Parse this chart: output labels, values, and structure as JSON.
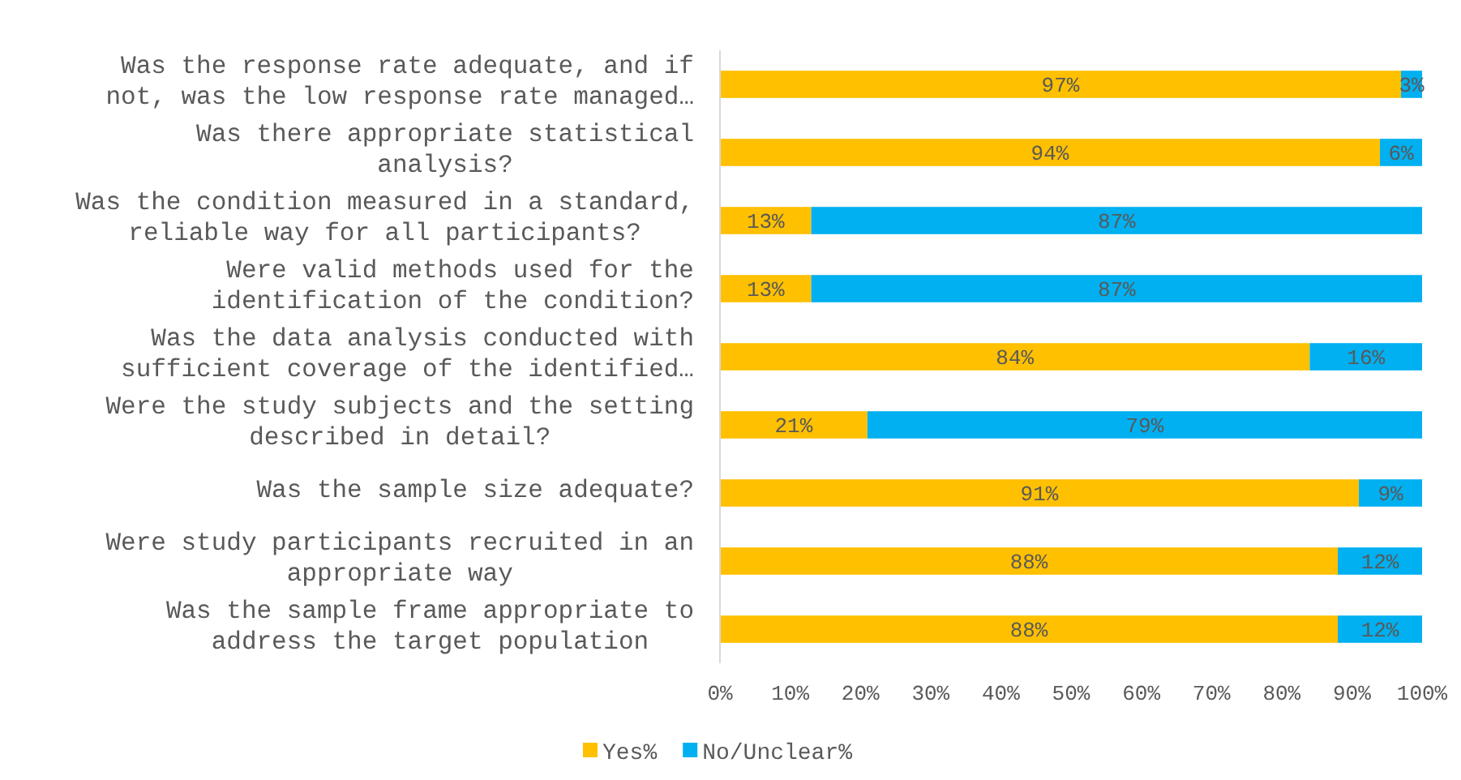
{
  "chart_data": {
    "type": "bar",
    "orientation": "horizontal",
    "stacked": true,
    "categories": [
      "Was the response rate adequate, and if not, was the low response rate managed…",
      "Was there appropriate statistical analysis?",
      "Was the condition measured in a standard, reliable way for all participants?",
      "Were valid methods used for the identification of the condition?",
      "Was the data analysis conducted with sufficient coverage of the identified…",
      "Were the study subjects and the setting described in detail?",
      "Was the sample size adequate?",
      "Were study participants recruited in an appropriate way",
      "Was the sample frame appropriate to address the target population"
    ],
    "series": [
      {
        "name": "Yes%",
        "color": "#ffc000",
        "values": [
          97,
          94,
          13,
          13,
          84,
          21,
          91,
          88,
          88
        ],
        "value_labels": [
          "97%",
          "94%",
          "13%",
          "13%",
          "84%",
          "21%",
          "91%",
          "88%",
          "88%"
        ]
      },
      {
        "name": "No/Unclear%",
        "color": "#00b0f0",
        "values": [
          3,
          6,
          87,
          87,
          16,
          79,
          9,
          12,
          12
        ],
        "value_labels": [
          "3%",
          "6%",
          "87%",
          "87%",
          "16%",
          "79%",
          "9%",
          "12%",
          "12%"
        ]
      }
    ],
    "xlim": [
      0,
      100
    ],
    "xticks": [
      {
        "value": 0,
        "label": "0%"
      },
      {
        "value": 10,
        "label": "10%"
      },
      {
        "value": 20,
        "label": "20%"
      },
      {
        "value": 30,
        "label": "30%"
      },
      {
        "value": 40,
        "label": "40%"
      },
      {
        "value": 50,
        "label": "50%"
      },
      {
        "value": 60,
        "label": "60%"
      },
      {
        "value": 70,
        "label": "70%"
      },
      {
        "value": 80,
        "label": "80%"
      },
      {
        "value": 90,
        "label": "90%"
      },
      {
        "value": 100,
        "label": "100%"
      }
    ],
    "grid": false,
    "legend": "bottom"
  }
}
